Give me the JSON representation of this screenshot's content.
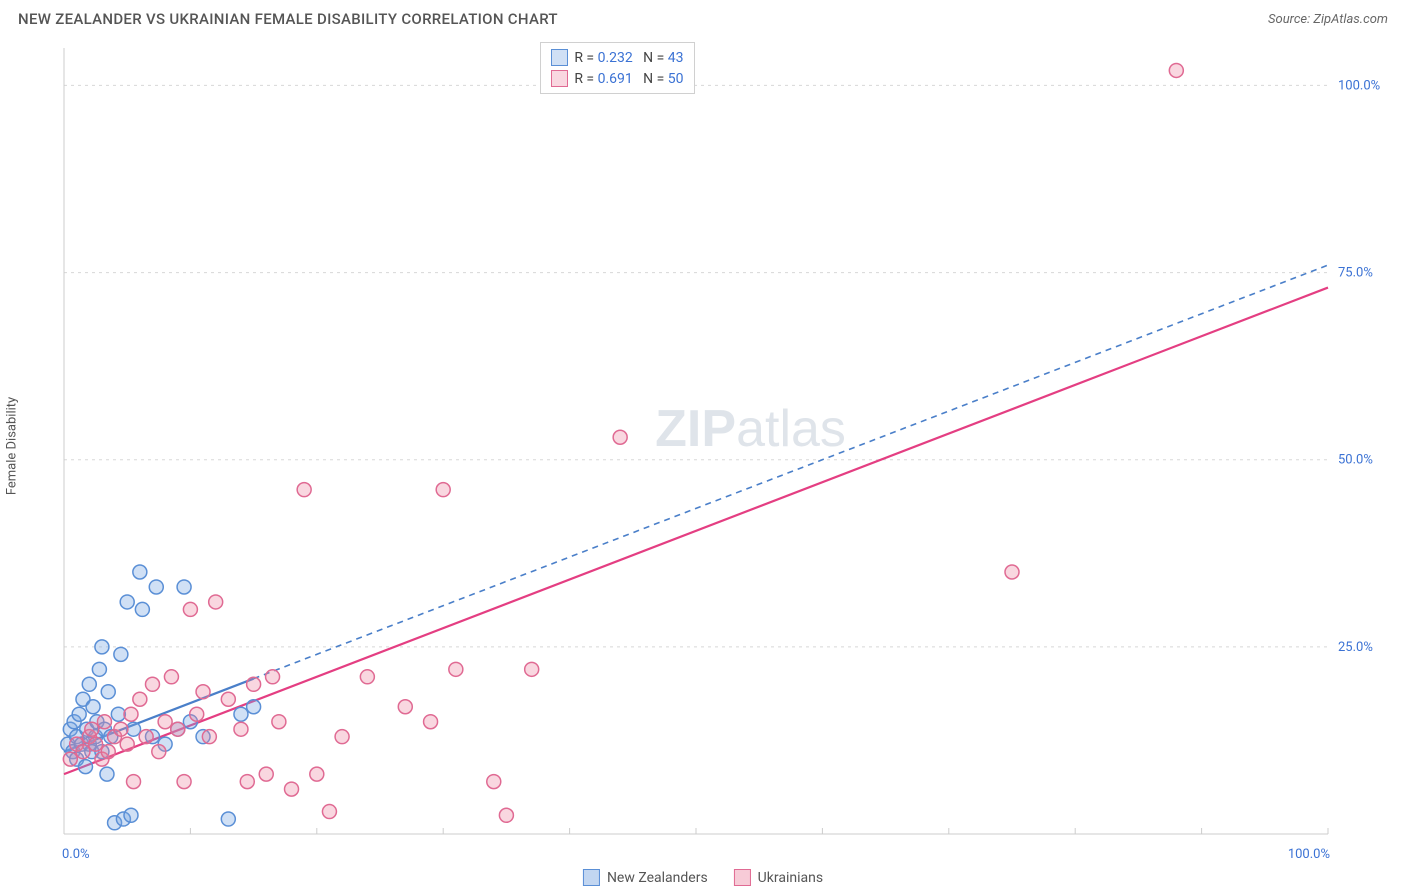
{
  "header": {
    "title": "NEW ZEALANDER VS UKRAINIAN FEMALE DISABILITY CORRELATION CHART",
    "source": "Source: ZipAtlas.com"
  },
  "y_axis_label": "Female Disability",
  "watermark": {
    "part1": "ZIP",
    "part2": "atlas"
  },
  "chart": {
    "type": "scatter",
    "xlim": [
      0,
      100
    ],
    "ylim": [
      0,
      105
    ],
    "x_ticks": [
      0,
      10,
      20,
      30,
      40,
      50,
      60,
      70,
      80,
      90,
      100
    ],
    "x_tick_labels": {
      "0": "0.0%",
      "100": "100.0%"
    },
    "y_gridlines": [
      25,
      50,
      75,
      100
    ],
    "y_tick_labels": {
      "25": "25.0%",
      "50": "50.0%",
      "75": "75.0%",
      "100": "100.0%"
    },
    "background_color": "#ffffff",
    "grid_color": "#d8d8d8",
    "axis_color": "#cccccc",
    "marker_radius": 7,
    "marker_stroke_width": 1.5,
    "series": [
      {
        "name": "New Zealanders",
        "fill": "rgba(120,165,225,0.35)",
        "stroke": "#5a8fd6",
        "R": "0.232",
        "N": "43",
        "trend": {
          "x1": 0,
          "y1": 11,
          "x2": 100,
          "y2": 76,
          "dash": "6 5",
          "color": "#4a7fc9",
          "solid_until_x": 15
        },
        "points": [
          [
            0.3,
            12
          ],
          [
            0.5,
            14
          ],
          [
            0.7,
            11
          ],
          [
            0.8,
            15
          ],
          [
            1,
            10
          ],
          [
            1,
            13
          ],
          [
            1.2,
            16
          ],
          [
            1.4,
            12
          ],
          [
            1.5,
            18
          ],
          [
            1.7,
            9
          ],
          [
            1.8,
            14
          ],
          [
            2,
            20
          ],
          [
            2,
            12
          ],
          [
            2.2,
            11
          ],
          [
            2.3,
            17
          ],
          [
            2.5,
            13
          ],
          [
            2.6,
            15
          ],
          [
            2.8,
            22
          ],
          [
            3,
            11
          ],
          [
            3,
            25
          ],
          [
            3.2,
            14
          ],
          [
            3.4,
            8
          ],
          [
            3.5,
            19
          ],
          [
            3.7,
            13
          ],
          [
            4,
            1.5
          ],
          [
            4.3,
            16
          ],
          [
            4.5,
            24
          ],
          [
            4.7,
            2
          ],
          [
            5,
            31
          ],
          [
            5.3,
            2.5
          ],
          [
            5.5,
            14
          ],
          [
            6,
            35
          ],
          [
            6.2,
            30
          ],
          [
            7,
            13
          ],
          [
            7.3,
            33
          ],
          [
            8,
            12
          ],
          [
            9,
            14
          ],
          [
            9.5,
            33
          ],
          [
            10,
            15
          ],
          [
            11,
            13
          ],
          [
            13,
            2
          ],
          [
            14,
            16
          ],
          [
            15,
            17
          ]
        ]
      },
      {
        "name": "Ukrainians",
        "fill": "rgba(235,130,160,0.32)",
        "stroke": "#e06a93",
        "R": "0.691",
        "N": "50",
        "trend": {
          "x1": 0,
          "y1": 8,
          "x2": 100,
          "y2": 73,
          "dash": null,
          "color": "#e43e82",
          "solid_until_x": 100
        },
        "points": [
          [
            0.5,
            10
          ],
          [
            1,
            12
          ],
          [
            1.5,
            11
          ],
          [
            2,
            13
          ],
          [
            2.2,
            14
          ],
          [
            2.5,
            12
          ],
          [
            3,
            10
          ],
          [
            3.2,
            15
          ],
          [
            3.5,
            11
          ],
          [
            4,
            13
          ],
          [
            4.5,
            14
          ],
          [
            5,
            12
          ],
          [
            5.3,
            16
          ],
          [
            5.5,
            7
          ],
          [
            6,
            18
          ],
          [
            6.5,
            13
          ],
          [
            7,
            20
          ],
          [
            7.5,
            11
          ],
          [
            8,
            15
          ],
          [
            8.5,
            21
          ],
          [
            9,
            14
          ],
          [
            9.5,
            7
          ],
          [
            10,
            30
          ],
          [
            10.5,
            16
          ],
          [
            11,
            19
          ],
          [
            11.5,
            13
          ],
          [
            12,
            31
          ],
          [
            13,
            18
          ],
          [
            14,
            14
          ],
          [
            14.5,
            7
          ],
          [
            15,
            20
          ],
          [
            16,
            8
          ],
          [
            16.5,
            21
          ],
          [
            17,
            15
          ],
          [
            18,
            6
          ],
          [
            19,
            46
          ],
          [
            20,
            8
          ],
          [
            21,
            3
          ],
          [
            22,
            13
          ],
          [
            24,
            21
          ],
          [
            27,
            17
          ],
          [
            29,
            15
          ],
          [
            30,
            46
          ],
          [
            31,
            22
          ],
          [
            34,
            7
          ],
          [
            35,
            2.5
          ],
          [
            37,
            22
          ],
          [
            44,
            53
          ],
          [
            75,
            35
          ],
          [
            88,
            102
          ]
        ]
      }
    ]
  },
  "legend_bottom": [
    {
      "label": "New Zealanders",
      "fill": "rgba(120,165,225,0.45)",
      "stroke": "#5a8fd6"
    },
    {
      "label": "Ukrainians",
      "fill": "rgba(235,130,160,0.42)",
      "stroke": "#e06a93"
    }
  ],
  "legend_top": {
    "border_color": "#c8c8c8"
  }
}
